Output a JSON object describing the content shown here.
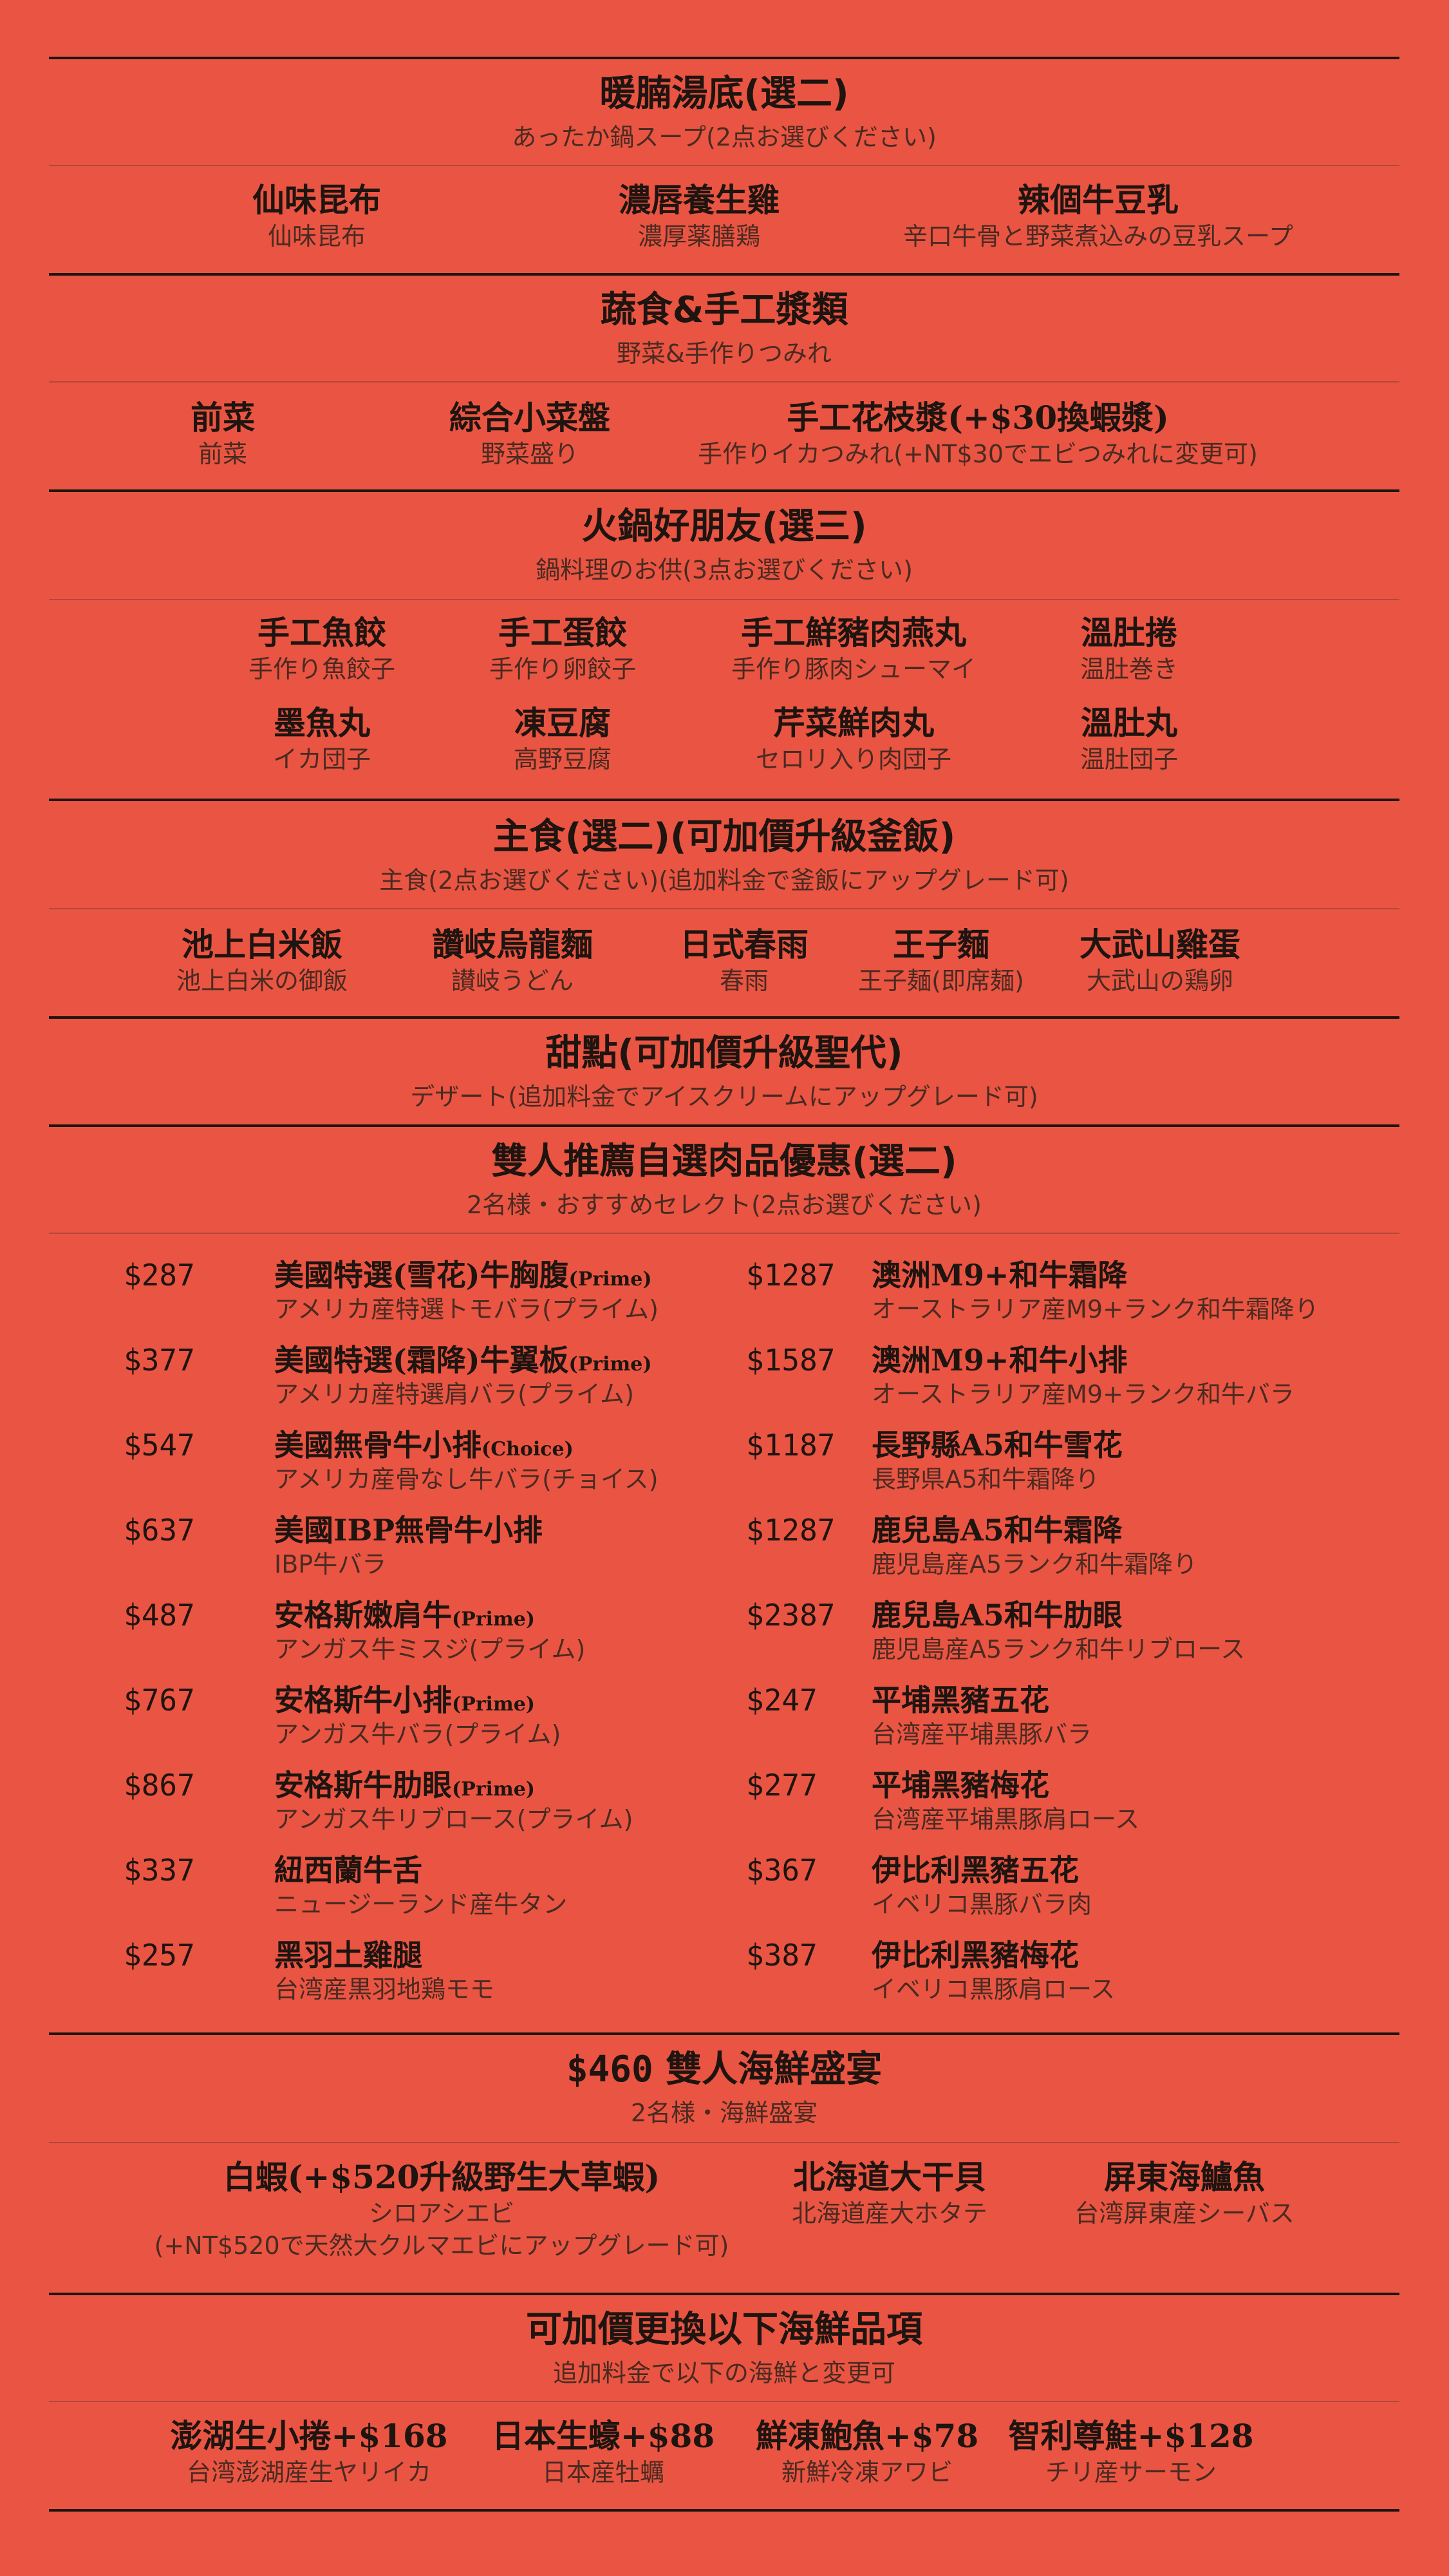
{
  "soup": {
    "title": "暖腩湯底(選二)",
    "subtitle": "あったか鍋スープ(2点お選びください)",
    "items": [
      {
        "name": "仙味昆布",
        "sub": "仙味昆布"
      },
      {
        "name": "濃唇養生雞",
        "sub": "濃厚薬膳鶏"
      },
      {
        "name": "辣個牛豆乳",
        "sub": "辛口牛骨と野菜煮込みの豆乳スープ"
      }
    ]
  },
  "veg": {
    "title": "蔬食&手工漿類",
    "subtitle": "野菜&手作りつみれ",
    "items": [
      {
        "name": "前菜",
        "sub": "前菜"
      },
      {
        "name": "綜合小菜盤",
        "sub": "野菜盛り"
      },
      {
        "name": "手工花枝漿(+$30換蝦漿)",
        "sub": "手作りイカつみれ(+NT$30でエビつみれに変更可)"
      }
    ]
  },
  "friends": {
    "title": "火鍋好朋友(選三)",
    "subtitle": "鍋料理のお供(3点お選びください)",
    "items": [
      {
        "name": "手工魚餃",
        "sub": "手作り魚餃子"
      },
      {
        "name": "手工蛋餃",
        "sub": "手作り卵餃子"
      },
      {
        "name": "手工鮮豬肉燕丸",
        "sub": "手作り豚肉シューマイ"
      },
      {
        "name": "溫肚捲",
        "sub": "温肚巻き"
      },
      {
        "name": "墨魚丸",
        "sub": "イカ団子"
      },
      {
        "name": "凍豆腐",
        "sub": "高野豆腐"
      },
      {
        "name": "芹菜鮮肉丸",
        "sub": "セロリ入り肉団子"
      },
      {
        "name": "溫肚丸",
        "sub": "温肚団子"
      }
    ]
  },
  "staple": {
    "title": "主食(選二)(可加價升級釜飯)",
    "subtitle": "主食(2点お選びください)(追加料金で釜飯にアップグレード可)",
    "items": [
      {
        "name": "池上白米飯",
        "sub": "池上白米の御飯"
      },
      {
        "name": "讚岐烏龍麵",
        "sub": "讃岐うどん"
      },
      {
        "name": "日式春雨",
        "sub": "春雨"
      },
      {
        "name": "王子麵",
        "sub": "王子麺(即席麺)"
      },
      {
        "name": "大武山雞蛋",
        "sub": "大武山の鶏卵"
      }
    ]
  },
  "dessert": {
    "title": "甜點(可加價升級聖代)",
    "subtitle": "デザート(追加料金でアイスクリームにアップグレード可)"
  },
  "meat": {
    "title": "雙人推薦自選肉品優惠(選二)",
    "subtitle": "2名様・おすすめセレクト(2点お選びください)",
    "left": [
      {
        "price": "$287",
        "name": "美國特選(雪花)牛胸腹",
        "tag": "(Prime)",
        "sub": "アメリカ産特選トモバラ(プライム)"
      },
      {
        "price": "$377",
        "name": "美國特選(霜降)牛翼板",
        "tag": "(Prime)",
        "sub": "アメリカ産特選肩バラ(プライム)"
      },
      {
        "price": "$547",
        "name": "美國無骨牛小排",
        "tag": "(Choice)",
        "sub": "アメリカ産骨なし牛バラ(チョイス)"
      },
      {
        "price": "$637",
        "name": "美國IBP無骨牛小排",
        "tag": "",
        "sub": "IBP牛バラ"
      },
      {
        "price": "$487",
        "name": "安格斯嫩肩牛",
        "tag": "(Prime)",
        "sub": "アンガス牛ミスジ(プライム)"
      },
      {
        "price": "$767",
        "name": "安格斯牛小排",
        "tag": "(Prime)",
        "sub": "アンガス牛バラ(プライム)"
      },
      {
        "price": "$867",
        "name": "安格斯牛肋眼",
        "tag": "(Prime)",
        "sub": "アンガス牛リブロース(プライム)"
      },
      {
        "price": "$337",
        "name": "紐西蘭牛舌",
        "tag": "",
        "sub": "ニュージーランド産牛タン"
      },
      {
        "price": "$257",
        "name": "黑羽土雞腿",
        "tag": "",
        "sub": "台湾産黒羽地鶏モモ"
      }
    ],
    "right": [
      {
        "price": "$1287",
        "name": "澳洲M9+和牛霜降",
        "tag": "",
        "sub": "オーストラリア産M9+ランク和牛霜降り"
      },
      {
        "price": "$1587",
        "name": "澳洲M9+和牛小排",
        "tag": "",
        "sub": "オーストラリア産M9+ランク和牛バラ"
      },
      {
        "price": "$1187",
        "name": "長野縣A5和牛雪花",
        "tag": "",
        "sub": "長野県A5和牛霜降り"
      },
      {
        "price": "$1287",
        "name": "鹿兒島A5和牛霜降",
        "tag": "",
        "sub": "鹿児島産A5ランク和牛霜降り"
      },
      {
        "price": "$2387",
        "name": "鹿兒島A5和牛肋眼",
        "tag": "",
        "sub": "鹿児島産A5ランク和牛リブロース"
      },
      {
        "price": "$247",
        "name": "平埔黑豬五花",
        "tag": "",
        "sub": "台湾産平埔黒豚バラ"
      },
      {
        "price": "$277",
        "name": "平埔黑豬梅花",
        "tag": "",
        "sub": "台湾産平埔黒豚肩ロース"
      },
      {
        "price": "$367",
        "name": "伊比利黑豬五花",
        "tag": "",
        "sub": "イベリコ黒豚バラ肉"
      },
      {
        "price": "$387",
        "name": "伊比利黑豬梅花",
        "tag": "",
        "sub": "イベリコ黒豚肩ロース"
      }
    ]
  },
  "seafood": {
    "price": "$460",
    "title": "雙人海鮮盛宴",
    "subtitle": "2名様・海鮮盛宴",
    "items": [
      {
        "name": "白蝦(+$520升級野生大草蝦)",
        "sub": "シロアシエビ",
        "sub2": "(+NT$520で天然大クルマエビにアップグレード可)"
      },
      {
        "name": "北海道大干貝",
        "sub": "北海道産大ホタテ"
      },
      {
        "name": "屏東海鱸魚",
        "sub": "台湾屏東産シーバス"
      }
    ]
  },
  "extra": {
    "title": "可加價更換以下海鮮品項",
    "subtitle": "追加料金で以下の海鮮と変更可",
    "items": [
      {
        "name": "澎湖生小捲+$168",
        "sub": "台湾澎湖産生ヤリイカ"
      },
      {
        "name": "日本生蠔+$88",
        "sub": "日本産牡蠣"
      },
      {
        "name": "鮮凍鮑魚+$78",
        "sub": "新鮮冷凍アワビ"
      },
      {
        "name": "智利尊鮭+$128",
        "sub": "チリ産サーモン"
      }
    ]
  }
}
